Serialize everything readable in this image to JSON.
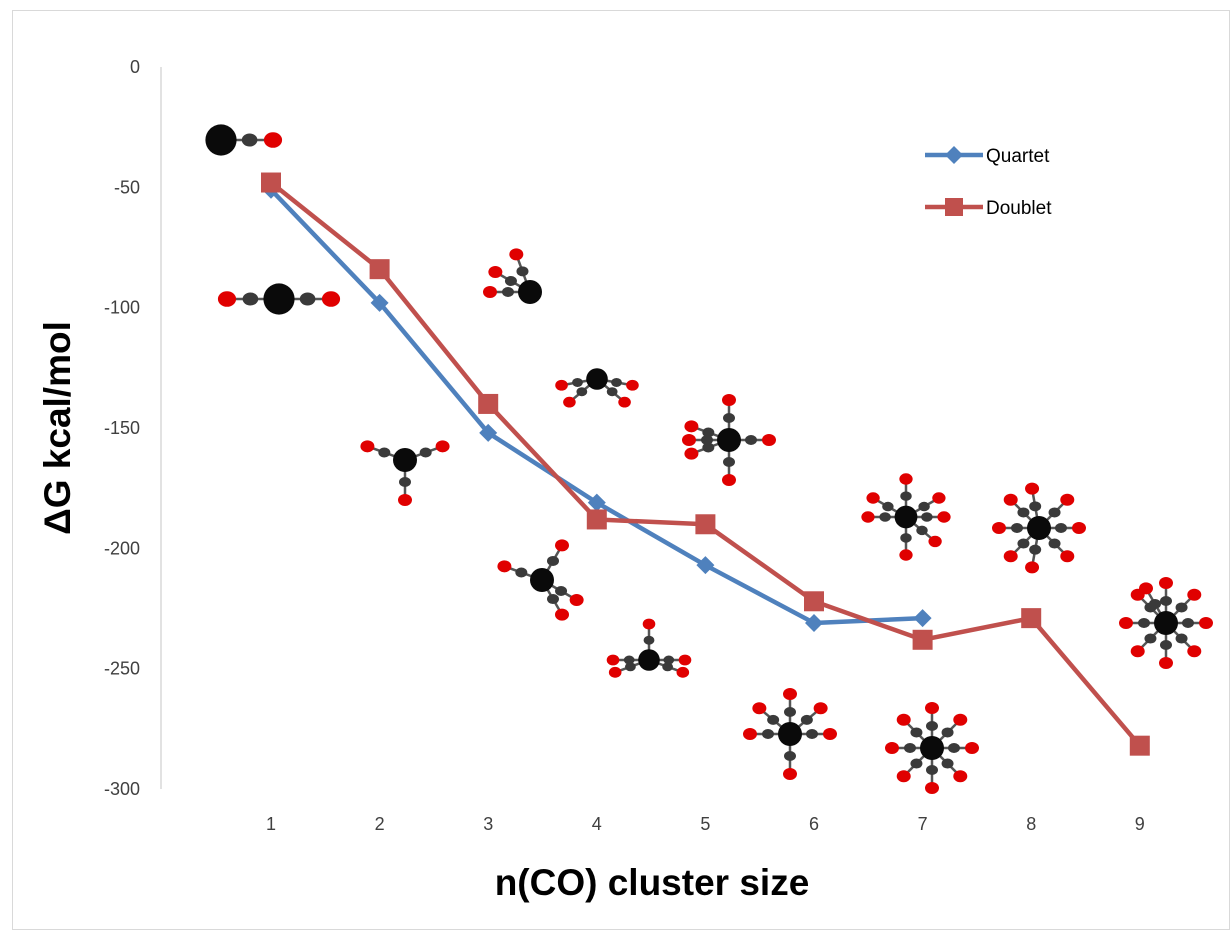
{
  "chart_data": {
    "type": "line",
    "xlabel": "n(CO) cluster size",
    "ylabel": "ΔG kcal/mol",
    "categories": [
      "1",
      "2",
      "3",
      "4",
      "5",
      "6",
      "7",
      "8",
      "9"
    ],
    "ylim": [
      -300,
      0
    ],
    "yticks": [
      "0",
      "-50",
      "-100",
      "-150",
      "-200",
      "-250",
      "-300"
    ],
    "legend_position": "top-right",
    "series": [
      {
        "name": "Quartet",
        "color": "#4F81BD",
        "marker": "diamond",
        "values": [
          -51,
          -98,
          -152,
          -181,
          -207,
          -231,
          -229,
          null,
          null
        ]
      },
      {
        "name": "Doublet",
        "color": "#C0504D",
        "marker": "square",
        "values": [
          -48,
          -84,
          -140,
          -188,
          -190,
          -222,
          -238,
          -229,
          -282
        ]
      }
    ],
    "annotations": "molecular structure images of metal carbonyl clusters"
  }
}
